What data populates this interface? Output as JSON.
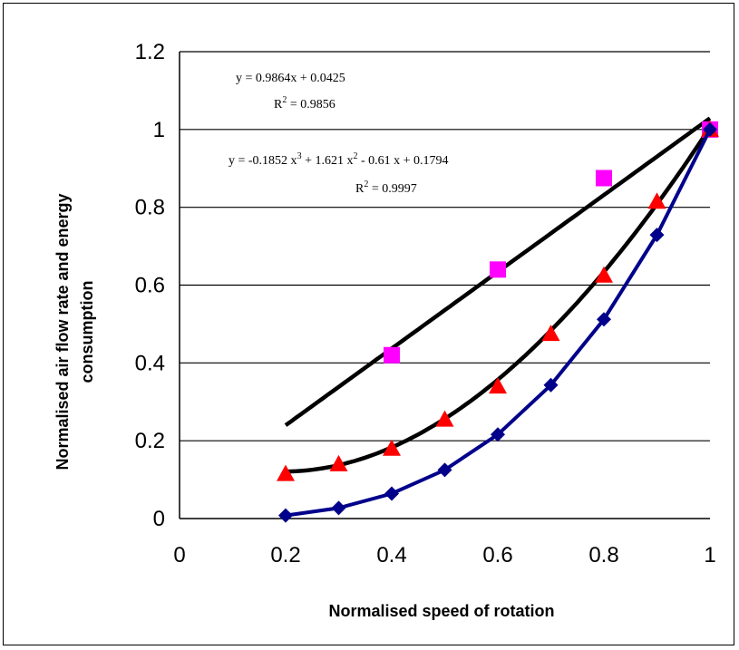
{
  "chart_data": {
    "type": "scatter",
    "title": "",
    "xlabel": "Normalised speed of rotation",
    "ylabel_lines": [
      "Normalised air flow rate and energy",
      "consumption"
    ],
    "xlim": [
      0,
      1
    ],
    "ylim": [
      0,
      1.2
    ],
    "x_ticks": [
      0,
      0.2,
      0.4,
      0.6,
      0.8,
      1
    ],
    "x_tick_labels": [
      "0",
      "0.2",
      "0.4",
      "0.6",
      "0.8",
      "1"
    ],
    "y_ticks": [
      0,
      0.2,
      0.4,
      0.6,
      0.8,
      1,
      1.2
    ],
    "y_tick_labels": [
      "0",
      "0.2",
      "0.4",
      "0.6",
      "0.8",
      "1",
      "1.2"
    ],
    "grid": "horizontal",
    "legend": "none",
    "series": [
      {
        "marker": "square",
        "color": "#ff00ff",
        "x": [
          0.4,
          0.6,
          0.8,
          1.0
        ],
        "y": [
          0.42,
          0.64,
          0.875,
          1.0
        ],
        "trendline": {
          "type": "linear",
          "coefficients": [
            0.9864,
            0.0425
          ],
          "x_range": [
            0.2,
            1.0
          ],
          "color": "#000000"
        }
      },
      {
        "marker": "triangle",
        "color": "#ff0000",
        "x": [
          0.2,
          0.3,
          0.4,
          0.5,
          0.6,
          0.7,
          0.8,
          0.9,
          1.0
        ],
        "y": [
          0.115,
          0.14,
          0.18,
          0.255,
          0.34,
          0.475,
          0.625,
          0.815,
          1.0
        ],
        "trendline": {
          "type": "poly3",
          "coefficients": [
            -0.1852,
            1.621,
            -0.61,
            0.1794
          ],
          "x_range": [
            0.2,
            1.0
          ],
          "color": "#000000"
        }
      },
      {
        "marker": "diamond",
        "color": "#00008b",
        "x": [
          0.2,
          0.3,
          0.4,
          0.5,
          0.6,
          0.7,
          0.8,
          0.9,
          1.0
        ],
        "y": [
          0.008,
          0.027,
          0.064,
          0.125,
          0.216,
          0.343,
          0.512,
          0.729,
          1.0
        ],
        "connect": true
      }
    ],
    "annotations": {
      "linear_eq": "y = 0.9864x + 0.0425",
      "linear_r2_base": "R",
      "linear_r2_rest": " = 0.9856",
      "poly_eq_p1": "y = -0.1852 x",
      "poly_eq_p2": " + 1.621 x",
      "poly_eq_p3": " - 0.61 x + 0.1794",
      "poly_r2_base": "R",
      "poly_r2_rest": " = 0.9997",
      "sup2": "2",
      "sup3": "3"
    }
  }
}
